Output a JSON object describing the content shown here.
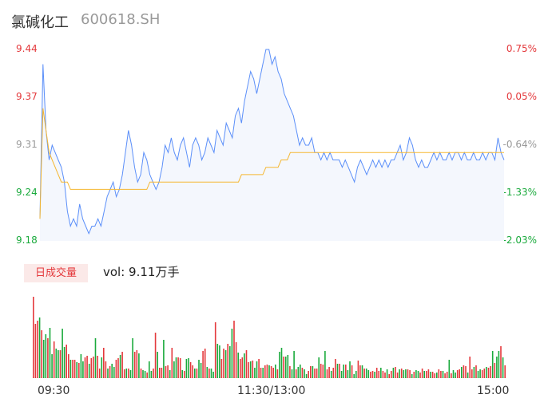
{
  "header": {
    "name": "氯碱化工",
    "code": "600618.SH"
  },
  "volume_panel": {
    "tab_label": "日成交量",
    "readout": "vol: 9.11万手"
  },
  "colors": {
    "price_line": "#5b8ff9",
    "avg_line": "#f5b731",
    "area_fill": "#f4f7fd",
    "up": "#e4393c",
    "down": "#1aaa3c",
    "flat": "#999999"
  },
  "chart_data": [
    {
      "type": "line",
      "title": "",
      "y_ticks": [
        "9.44",
        "9.37",
        "9.31",
        "9.24",
        "9.18"
      ],
      "y2_ticks": [
        "0.75%",
        "0.05%",
        "-0.64%",
        "-1.33%",
        "-2.03%"
      ],
      "ylim": [
        9.18,
        9.44
      ],
      "prev_close": 9.37,
      "series": [
        {
          "values": [
            9.21,
            9.42,
            9.33,
            9.29,
            9.31,
            9.3,
            9.29,
            9.28,
            9.26,
            9.22,
            9.2,
            9.21,
            9.2,
            9.23,
            9.21,
            9.2,
            9.19,
            9.2,
            9.2,
            9.21,
            9.2,
            9.22,
            9.24,
            9.25,
            9.26,
            9.24,
            9.25,
            9.27,
            9.3,
            9.33,
            9.31,
            9.28,
            9.26,
            9.27,
            9.3,
            9.29,
            9.27,
            9.26,
            9.25,
            9.26,
            9.28,
            9.31,
            9.3,
            9.32,
            9.3,
            9.29,
            9.31,
            9.32,
            9.3,
            9.28,
            9.31,
            9.32,
            9.31,
            9.29,
            9.3,
            9.32,
            9.31,
            9.3,
            9.33,
            9.32,
            9.31,
            9.34,
            9.33,
            9.32,
            9.35,
            9.36,
            9.34,
            9.37,
            9.39,
            9.41,
            9.4,
            9.38,
            9.4,
            9.42,
            9.44,
            9.44,
            9.42,
            9.43,
            9.41,
            9.4,
            9.38,
            9.37,
            9.36,
            9.35,
            9.33,
            9.31,
            9.32,
            9.31,
            9.31,
            9.32,
            9.3,
            9.3,
            9.29,
            9.3,
            9.29,
            9.3,
            9.29,
            9.29,
            9.29,
            9.28,
            9.29,
            9.28,
            9.27,
            9.26,
            9.28,
            9.29,
            9.28,
            9.27,
            9.28,
            9.29,
            9.28,
            9.29,
            9.28,
            9.29,
            9.28,
            9.29,
            9.29,
            9.3,
            9.31,
            9.29,
            9.3,
            9.32,
            9.31,
            9.29,
            9.28,
            9.29,
            9.28,
            9.28,
            9.29,
            9.3,
            9.29,
            9.3,
            9.29,
            9.29,
            9.3,
            9.29,
            9.3,
            9.3,
            9.29,
            9.3,
            9.29,
            9.29,
            9.3,
            9.29,
            9.29,
            9.3,
            9.29,
            9.3,
            9.3,
            9.29,
            9.32,
            9.3,
            9.29
          ]
        },
        {
          "values": [
            9.21,
            9.36,
            9.33,
            9.3,
            9.29,
            9.28,
            9.27,
            9.26,
            9.26,
            9.26,
            9.25,
            9.25,
            9.25,
            9.25,
            9.25,
            9.25,
            9.25,
            9.25,
            9.25,
            9.25,
            9.25,
            9.25,
            9.25,
            9.25,
            9.25,
            9.25,
            9.25,
            9.25,
            9.25,
            9.25,
            9.25,
            9.25,
            9.25,
            9.25,
            9.25,
            9.25,
            9.26,
            9.26,
            9.26,
            9.26,
            9.26,
            9.26,
            9.26,
            9.26,
            9.26,
            9.26,
            9.26,
            9.26,
            9.26,
            9.26,
            9.26,
            9.26,
            9.26,
            9.26,
            9.26,
            9.26,
            9.26,
            9.26,
            9.26,
            9.26,
            9.26,
            9.26,
            9.26,
            9.26,
            9.26,
            9.26,
            9.27,
            9.27,
            9.27,
            9.27,
            9.27,
            9.27,
            9.27,
            9.27,
            9.28,
            9.28,
            9.28,
            9.28,
            9.28,
            9.29,
            9.29,
            9.29,
            9.3,
            9.3,
            9.3,
            9.3,
            9.3,
            9.3,
            9.3,
            9.3,
            9.3,
            9.3,
            9.3,
            9.3,
            9.3,
            9.3,
            9.3,
            9.3,
            9.3,
            9.3,
            9.3,
            9.3,
            9.3,
            9.3,
            9.3,
            9.3,
            9.3,
            9.3,
            9.3,
            9.3,
            9.3,
            9.3,
            9.3,
            9.3,
            9.3,
            9.3,
            9.3,
            9.3,
            9.3,
            9.3,
            9.3,
            9.3,
            9.3,
            9.3,
            9.3,
            9.3,
            9.3,
            9.3,
            9.3,
            9.3,
            9.3,
            9.3,
            9.3,
            9.3,
            9.3,
            9.3,
            9.3,
            9.3,
            9.3,
            9.3,
            9.3,
            9.3,
            9.3,
            9.3,
            9.3,
            9.3,
            9.3,
            9.3,
            9.3,
            9.3,
            9.3,
            9.3,
            9.3
          ]
        }
      ]
    },
    {
      "type": "bar",
      "title": "",
      "x_ticks": [
        "09:30",
        "11:30/13:00",
        "15:00"
      ],
      "values": [
        102,
        68,
        72,
        76,
        60,
        48,
        55,
        50,
        63,
        30,
        46,
        37,
        35,
        35,
        62,
        39,
        42,
        30,
        23,
        23,
        23,
        20,
        19,
        30,
        21,
        26,
        28,
        18,
        25,
        27,
        50,
        28,
        12,
        26,
        38,
        21,
        12,
        15,
        18,
        14,
        23,
        25,
        29,
        33,
        11,
        12,
        12,
        10,
        50,
        33,
        35,
        31,
        12,
        10,
        9,
        7,
        21,
        9,
        12,
        57,
        33,
        13,
        13,
        48,
        15,
        16,
        10,
        38,
        21,
        26,
        26,
        25,
        10,
        9,
        24,
        25,
        20,
        16,
        12,
        12,
        23,
        19,
        34,
        37,
        14,
        12,
        12,
        8,
        70,
        43,
        41,
        24,
        37,
        35,
        43,
        40,
        62,
        72,
        45,
        32,
        24,
        26,
        31,
        35,
        20,
        21,
        22,
        13,
        21,
        24,
        13,
        13,
        16,
        17,
        16,
        15,
        13,
        17,
        11,
        33,
        38,
        27,
        27,
        29,
        15,
        11,
        34,
        11,
        14,
        17,
        13,
        11,
        5,
        9,
        15,
        15,
        12,
        12,
        26,
        18,
        17,
        34,
        11,
        14,
        9,
        13,
        24,
        18,
        18,
        9,
        17,
        17,
        10,
        21,
        16,
        5,
        9,
        22,
        16,
        16,
        12,
        12,
        10,
        8,
        9,
        8,
        13,
        9,
        13,
        9,
        7,
        11,
        5,
        9,
        13,
        14,
        7,
        11,
        12,
        10,
        11,
        11,
        10,
        5,
        8,
        10,
        9,
        7,
        12,
        9,
        9,
        11,
        8,
        8,
        6,
        7,
        11,
        9,
        9,
        6,
        8,
        23,
        6,
        10,
        7,
        10,
        11,
        14,
        16,
        15,
        7,
        27,
        11,
        14,
        16,
        9,
        11,
        10,
        12,
        14,
        13,
        15,
        34,
        19,
        27,
        34,
        40,
        26,
        16
      ]
    }
  ]
}
